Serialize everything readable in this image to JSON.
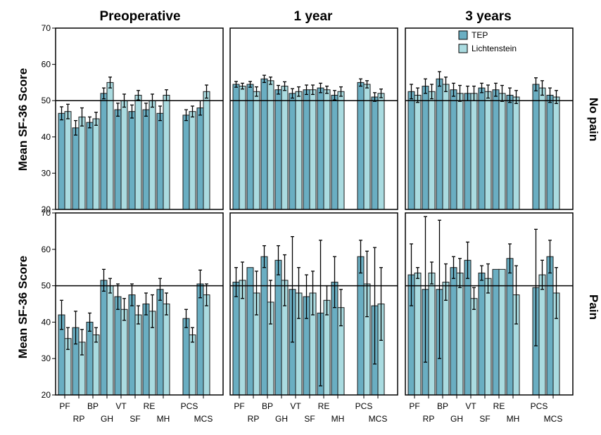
{
  "figure": {
    "column_titles": [
      "Preoperative",
      "1 year",
      "3 years"
    ],
    "row_labels": [
      "No pain",
      "Pain"
    ],
    "y_axis_label": "Mean SF-36 Score",
    "legend": [
      {
        "name": "TEP",
        "color": "#6aaec2"
      },
      {
        "name": "Lichtenstein",
        "color": "#aadbe0"
      }
    ],
    "reference_line": 50
  },
  "chart_data": {
    "type": "bar",
    "ylim": [
      20,
      70
    ],
    "yticks": [
      "20",
      "30",
      "40",
      "50",
      "60",
      "70"
    ],
    "categories": [
      "PF",
      "RP",
      "BP",
      "GH",
      "VT",
      "SF",
      "RE",
      "MH",
      "PCS",
      "MCS"
    ],
    "category_labels_top": [
      "PF",
      "BP",
      "VT",
      "RE",
      "MCS"
    ],
    "category_labels_bottom": [
      "RP",
      "GH",
      "SF",
      "MH",
      "PCS"
    ],
    "series_names": [
      "TEP",
      "Lichtenstein"
    ],
    "panels": [
      {
        "row": "No pain",
        "column": "Preoperative",
        "tep": [
          46.5,
          42.5,
          44,
          52,
          47.5,
          47,
          47.5,
          46.5,
          46,
          48
        ],
        "tep_err": [
          1.8,
          2,
          1.5,
          1.5,
          1.8,
          1.8,
          1.8,
          2,
          1.5,
          2
        ],
        "lich": [
          47,
          45.5,
          45,
          55,
          50,
          51.5,
          50,
          51.5,
          47,
          52.5
        ],
        "lich_err": [
          2,
          2.5,
          1.8,
          1.5,
          1.8,
          1.3,
          1.8,
          1.5,
          1.5,
          1.8
        ]
      },
      {
        "row": "No pain",
        "column": "1 year",
        "tep": [
          54.5,
          54.5,
          56,
          53,
          52,
          53,
          53.5,
          51.5,
          55,
          51
        ],
        "tep_err": [
          0.8,
          0.8,
          1,
          1.2,
          1.3,
          1.3,
          1.3,
          1.3,
          1,
          1.2
        ],
        "lich": [
          54,
          52.5,
          55.5,
          54,
          52.5,
          53,
          53,
          52.5,
          54.5,
          52
        ],
        "lich_err": [
          0.8,
          1.3,
          1,
          1.2,
          1.3,
          1.3,
          1,
          1.3,
          1,
          1.2
        ]
      },
      {
        "row": "No pain",
        "column": "3 years",
        "tep": [
          52.5,
          54,
          56,
          53,
          52,
          53.5,
          53,
          51.5,
          54.5,
          51.5
        ],
        "tep_err": [
          2,
          2,
          2,
          1.8,
          2,
          1.3,
          1.8,
          2,
          1.8,
          2
        ],
        "lich": [
          51.5,
          52.5,
          54.5,
          52,
          52,
          52.5,
          52,
          51,
          53.5,
          51
        ],
        "lich_err": [
          2,
          2,
          2,
          2.2,
          2,
          1.8,
          2.2,
          1.8,
          2,
          1.8
        ]
      },
      {
        "row": "Pain",
        "column": "Preoperative",
        "tep": [
          42,
          38.5,
          40,
          51.5,
          47,
          47.5,
          45,
          49,
          41,
          50.5
        ],
        "tep_err": [
          4,
          4.5,
          2.5,
          3,
          3.5,
          3,
          3,
          3,
          2.5,
          3.8
        ],
        "lich": [
          35.5,
          34.5,
          36.5,
          50,
          43.5,
          42,
          43,
          45,
          36.5,
          47.5
        ],
        "lich_err": [
          3,
          3.5,
          2,
          2,
          3,
          2.5,
          4.5,
          3,
          2,
          3
        ]
      },
      {
        "row": "Pain",
        "column": "1 year",
        "tep": [
          51,
          55,
          58,
          57,
          49,
          47,
          42.5,
          51,
          58,
          44.5
        ],
        "tep_err": [
          4,
          0,
          3,
          4,
          14.5,
          6,
          20,
          7,
          4.5,
          16
        ],
        "lich": [
          51.5,
          48,
          45.5,
          51.5,
          48,
          48,
          46,
          44,
          50.5,
          45
        ],
        "lich_err": [
          5,
          6,
          6,
          7,
          7,
          6,
          4,
          5,
          9,
          10
        ]
      },
      {
        "row": "Pain",
        "column": "3 years",
        "tep": [
          53,
          49,
          49,
          55,
          57,
          53.5,
          54.5,
          57.5,
          49.5,
          58
        ],
        "tep_err": [
          8.5,
          20,
          19,
          3,
          5,
          2,
          0,
          4,
          16,
          4.5
        ],
        "lich": [
          53.5,
          53.5,
          51,
          53.5,
          46.5,
          52,
          54.5,
          47.5,
          53,
          48
        ],
        "lich_err": [
          1.5,
          3,
          5,
          4,
          3,
          4,
          0,
          8,
          4,
          7
        ]
      }
    ]
  }
}
